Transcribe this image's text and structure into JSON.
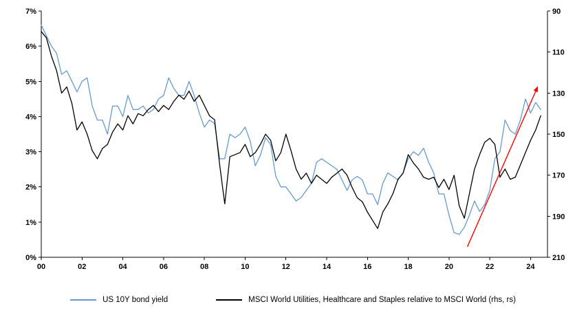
{
  "page": {
    "background": "#FFFFFF"
  },
  "chart_data": {
    "type": "line",
    "title": "",
    "xlabel": "",
    "ylabel_left": "",
    "ylabel_right": "",
    "grid": false,
    "x_range": [
      2000,
      2024.83
    ],
    "x_ticks": [
      "00",
      "02",
      "04",
      "06",
      "08",
      "10",
      "12",
      "14",
      "16",
      "18",
      "20",
      "22",
      "24"
    ],
    "x_tick_years": [
      2000,
      2002,
      2004,
      2006,
      2008,
      2010,
      2012,
      2014,
      2016,
      2018,
      2020,
      2022,
      2024
    ],
    "left_axis": {
      "ticks": [
        "0%",
        "1%",
        "2%",
        "3%",
        "4%",
        "5%",
        "6%",
        "7%"
      ],
      "tick_values": [
        0,
        1,
        2,
        3,
        4,
        5,
        6,
        7
      ],
      "range": [
        0,
        7
      ]
    },
    "right_axis": {
      "ticks": [
        "90",
        "110",
        "130",
        "150",
        "170",
        "190",
        "210"
      ],
      "tick_values": [
        90,
        110,
        130,
        150,
        170,
        190,
        210
      ],
      "range": [
        90,
        210
      ],
      "reversed": true
    },
    "x": [
      2000,
      2000.25,
      2000.5,
      2000.75,
      2001,
      2001.25,
      2001.5,
      2001.75,
      2002,
      2002.25,
      2002.5,
      2002.75,
      2003,
      2003.25,
      2003.5,
      2003.75,
      2004,
      2004.25,
      2004.5,
      2004.75,
      2005,
      2005.25,
      2005.5,
      2005.75,
      2006,
      2006.25,
      2006.5,
      2006.75,
      2007,
      2007.25,
      2007.5,
      2007.75,
      2008,
      2008.25,
      2008.5,
      2008.75,
      2009,
      2009.25,
      2009.5,
      2009.75,
      2010,
      2010.25,
      2010.5,
      2010.75,
      2011,
      2011.25,
      2011.5,
      2011.75,
      2012,
      2012.25,
      2012.5,
      2012.75,
      2013,
      2013.25,
      2013.5,
      2013.75,
      2014,
      2014.25,
      2014.5,
      2014.75,
      2015,
      2015.25,
      2015.5,
      2015.75,
      2016,
      2016.25,
      2016.5,
      2016.75,
      2017,
      2017.25,
      2017.5,
      2017.75,
      2018,
      2018.25,
      2018.5,
      2018.75,
      2019,
      2019.25,
      2019.5,
      2019.75,
      2020,
      2020.25,
      2020.5,
      2020.75,
      2021,
      2021.25,
      2021.5,
      2021.75,
      2022,
      2022.25,
      2022.5,
      2022.75,
      2023,
      2023.25,
      2023.5,
      2023.75,
      2024,
      2024.25,
      2024.5
    ],
    "series": [
      {
        "name": "US 10Y bond yield",
        "axis": "left",
        "color": "#6699CC",
        "values": [
          6.6,
          6.3,
          6.0,
          5.8,
          5.2,
          5.3,
          5.0,
          4.7,
          5.0,
          5.1,
          4.3,
          3.9,
          3.9,
          3.5,
          4.3,
          4.3,
          4.0,
          4.6,
          4.2,
          4.2,
          4.3,
          4.1,
          4.2,
          4.5,
          4.6,
          5.1,
          4.8,
          4.6,
          4.6,
          5.0,
          4.6,
          4.1,
          3.7,
          3.9,
          3.8,
          2.8,
          2.8,
          3.5,
          3.4,
          3.5,
          3.7,
          3.3,
          2.6,
          2.9,
          3.4,
          3.2,
          2.3,
          2.0,
          2.0,
          1.8,
          1.6,
          1.7,
          1.9,
          2.1,
          2.7,
          2.8,
          2.7,
          2.6,
          2.5,
          2.2,
          1.9,
          2.2,
          2.3,
          2.2,
          1.8,
          1.8,
          1.5,
          2.1,
          2.4,
          2.3,
          2.2,
          2.4,
          2.8,
          3.0,
          2.9,
          3.1,
          2.7,
          2.4,
          1.8,
          1.8,
          1.2,
          0.7,
          0.65,
          0.85,
          1.2,
          1.6,
          1.3,
          1.5,
          1.9,
          2.8,
          3.0,
          3.9,
          3.6,
          3.5,
          3.9,
          4.5,
          4.1,
          4.4,
          4.2
        ]
      },
      {
        "name": "MSCI World Utilities, Healthcare and Staples relative to MSCI World (rhs, rs)",
        "axis": "right",
        "color": "#000000",
        "values": [
          100,
          103,
          112,
          119,
          130,
          127,
          135,
          148,
          144,
          150,
          158,
          162,
          157,
          155,
          149,
          145,
          148,
          141,
          145,
          140,
          141,
          138,
          136,
          139,
          136,
          138,
          134,
          131,
          133,
          129,
          134,
          131,
          136,
          141,
          143,
          165,
          184,
          161,
          160,
          159,
          155,
          161,
          159,
          155,
          150,
          153,
          163,
          159,
          150,
          158,
          167,
          172,
          169,
          174,
          170,
          172,
          174,
          171,
          169,
          167,
          170,
          176,
          181,
          183,
          188,
          192,
          196,
          188,
          184,
          179,
          172,
          169,
          160,
          164,
          167,
          171,
          172,
          171,
          176,
          172,
          177,
          170,
          185,
          191,
          179,
          167,
          160,
          154,
          152,
          155,
          171,
          167,
          172,
          171,
          165,
          159,
          153,
          148,
          141
        ]
      }
    ],
    "annotations": [
      {
        "type": "arrow",
        "color": "#FF0000",
        "axis": "left",
        "from": {
          "x": 2020.9,
          "y": 0.3
        },
        "to": {
          "x": 2024.35,
          "y": 4.85
        }
      }
    ],
    "legend": {
      "position": "bottom",
      "entries": [
        {
          "label": "US 10Y bond yield",
          "color": "#6699CC"
        },
        {
          "label": "MSCI World Utilities, Healthcare and Staples relative to MSCI World (rhs, rs)",
          "color": "#000000"
        }
      ]
    }
  }
}
